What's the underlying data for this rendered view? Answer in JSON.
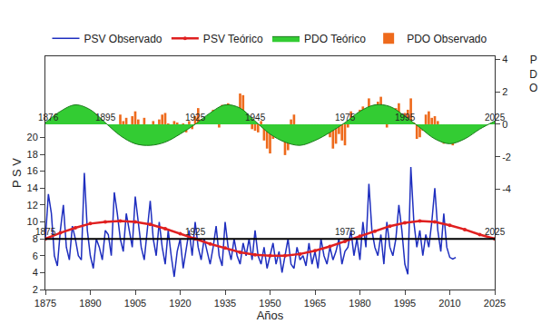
{
  "chart_data": {
    "type": "combo",
    "x_label": "Años",
    "y_label": "P S V",
    "y2_label": "P D O",
    "xlim": [
      1875,
      2025
    ],
    "xticks": [
      1875,
      1890,
      1905,
      1920,
      1935,
      1950,
      1965,
      1980,
      1995,
      2010,
      2025
    ],
    "ylim": [
      2,
      29.6
    ],
    "yticks": [
      2,
      4,
      6,
      8,
      10,
      12,
      14,
      16,
      18,
      20
    ],
    "y2lim": [
      -10.2,
      4.2
    ],
    "y2ticks": [
      4,
      2,
      0,
      -2,
      -4
    ],
    "grid": false,
    "legend": "top",
    "hline": 8,
    "series": [
      {
        "name": "PSV Observado",
        "type": "line",
        "color": "#1f2fbf",
        "axis": "y",
        "x": [
          1875,
          1876,
          1877,
          1878,
          1879,
          1880,
          1881,
          1882,
          1883,
          1884,
          1885,
          1886,
          1887,
          1888,
          1889,
          1890,
          1891,
          1892,
          1893,
          1894,
          1895,
          1896,
          1897,
          1898,
          1899,
          1900,
          1901,
          1902,
          1903,
          1904,
          1905,
          1906,
          1907,
          1908,
          1909,
          1910,
          1911,
          1912,
          1913,
          1914,
          1915,
          1916,
          1917,
          1918,
          1919,
          1920,
          1921,
          1922,
          1923,
          1924,
          1925,
          1926,
          1927,
          1928,
          1929,
          1930,
          1931,
          1932,
          1933,
          1934,
          1935,
          1936,
          1937,
          1938,
          1939,
          1940,
          1941,
          1942,
          1943,
          1944,
          1945,
          1946,
          1947,
          1948,
          1949,
          1950,
          1951,
          1952,
          1953,
          1954,
          1955,
          1956,
          1957,
          1958,
          1959,
          1960,
          1961,
          1962,
          1963,
          1964,
          1965,
          1966,
          1967,
          1968,
          1969,
          1970,
          1971,
          1972,
          1973,
          1974,
          1975,
          1976,
          1977,
          1978,
          1979,
          1980,
          1981,
          1982,
          1983,
          1984,
          1985,
          1986,
          1987,
          1988,
          1989,
          1990,
          1991,
          1992,
          1993,
          1994,
          1995,
          1996,
          1997,
          1998,
          1999,
          2000,
          2001,
          2002,
          2003,
          2004,
          2005,
          2006,
          2007,
          2008,
          2009,
          2010,
          2011,
          2012
        ],
        "values": [
          8,
          13.3,
          11,
          6,
          4.8,
          9,
          12,
          7,
          5.5,
          9.5,
          8,
          6,
          5.5,
          15.8,
          9,
          6,
          4.5,
          8,
          7,
          5.5,
          9,
          8.5,
          6,
          13.5,
          11,
          8,
          6.5,
          11,
          9,
          7,
          13,
          10,
          7,
          5.5,
          9,
          12.5,
          8,
          6,
          10,
          7,
          5,
          9,
          6,
          3.5,
          6.5,
          8,
          4.5,
          7,
          9,
          6,
          10,
          7,
          5.5,
          8,
          6.5,
          5,
          7,
          9.5,
          6,
          4.8,
          10,
          7,
          5.5,
          8,
          6,
          5,
          7.5,
          6,
          8,
          5.5,
          9,
          6,
          5,
          7,
          4.5,
          6,
          7.5,
          5,
          6.5,
          4,
          6,
          8,
          5,
          4.5,
          7,
          5.5,
          6,
          4.8,
          7.5,
          5,
          6.5,
          4.5,
          8,
          6,
          5,
          7,
          5.5,
          6.5,
          8,
          5,
          6.5,
          7,
          9,
          6,
          8,
          5.5,
          10,
          7,
          14.5,
          9,
          7,
          6,
          8.5,
          5,
          10,
          7,
          6,
          8,
          12,
          9,
          5,
          3.8,
          16.5,
          10,
          7,
          9,
          6,
          8.5,
          7,
          10,
          14,
          9,
          6.5,
          11,
          7,
          5.8,
          5.6,
          5.8
        ]
      },
      {
        "name": "PSV Teórico",
        "type": "line",
        "color": "#e02020",
        "marker": "circle",
        "axis": "y",
        "x": [
          1875,
          1880,
          1885,
          1890,
          1895,
          1900,
          1905,
          1910,
          1915,
          1920,
          1925,
          1930,
          1935,
          1940,
          1945,
          1950,
          1955,
          1960,
          1965,
          1970,
          1975,
          1980,
          1985,
          1990,
          1995,
          2000,
          2005,
          2010,
          2015,
          2020,
          2025
        ],
        "values": [
          8,
          8.7,
          9.3,
          9.8,
          10,
          10.1,
          10,
          9.7,
          9.2,
          8.6,
          8,
          7.4,
          6.9,
          6.4,
          6.1,
          6,
          6,
          6.2,
          6.6,
          7.1,
          7.7,
          8.3,
          8.9,
          9.5,
          9.9,
          10.1,
          10,
          9.6,
          9.1,
          8.5,
          8
        ]
      },
      {
        "name": "PDO Teórico",
        "type": "area",
        "color": "#33cc33",
        "axis": "y2",
        "x": [
          1875,
          1880,
          1885,
          1890,
          1895,
          1900,
          1905,
          1910,
          1915,
          1920,
          1925,
          1930,
          1935,
          1940,
          1945,
          1950,
          1955,
          1960,
          1965,
          1970,
          1975,
          1980,
          1985,
          1990,
          1995,
          2000,
          2005,
          2010,
          2015,
          2020,
          2025
        ],
        "values": [
          0.1,
          0.8,
          1.2,
          0.9,
          0.1,
          -0.7,
          -1.2,
          -1.3,
          -1.1,
          -0.6,
          0,
          0.7,
          1.2,
          1.0,
          0.2,
          -0.6,
          -1.1,
          -1.3,
          -1.0,
          -0.5,
          0.1,
          0.8,
          1.2,
          1.1,
          0.5,
          -0.2,
          -0.9,
          -1.2,
          -0.9,
          -0.3,
          0.2
        ]
      },
      {
        "name": "PDO Observado",
        "type": "bar",
        "color": "#ee6a1c",
        "axis": "y2",
        "x": [
          1900,
          1901,
          1902,
          1903,
          1904,
          1905,
          1906,
          1907,
          1908,
          1909,
          1910,
          1911,
          1912,
          1913,
          1914,
          1915,
          1916,
          1917,
          1918,
          1919,
          1920,
          1921,
          1922,
          1923,
          1924,
          1925,
          1926,
          1927,
          1928,
          1929,
          1930,
          1931,
          1932,
          1933,
          1934,
          1935,
          1936,
          1937,
          1938,
          1939,
          1940,
          1941,
          1942,
          1943,
          1944,
          1945,
          1946,
          1947,
          1948,
          1949,
          1950,
          1951,
          1952,
          1953,
          1954,
          1955,
          1956,
          1957,
          1958,
          1959,
          1960,
          1961,
          1962,
          1963,
          1964,
          1965,
          1966,
          1967,
          1968,
          1969,
          1970,
          1971,
          1972,
          1973,
          1974,
          1975,
          1976,
          1977,
          1978,
          1979,
          1980,
          1981,
          1982,
          1983,
          1984,
          1985,
          1986,
          1987,
          1988,
          1989,
          1990,
          1991,
          1992,
          1993,
          1994,
          1995,
          1996,
          1997,
          1998,
          1999,
          2000,
          2001,
          2002,
          2003,
          2004,
          2005,
          2006,
          2007,
          2008,
          2009,
          2010,
          2011,
          2012
        ],
        "values": [
          0.6,
          0.2,
          0.4,
          -0.3,
          0.5,
          0.8,
          0.3,
          -0.2,
          0.4,
          -0.4,
          -0.3,
          0.2,
          -0.2,
          0.3,
          0.6,
          0.7,
          -0.1,
          -0.4,
          0.2,
          0.1,
          -0.4,
          -0.1,
          -0.5,
          0.2,
          -0.3,
          0.5,
          1.0,
          0.3,
          0.2,
          0.1,
          0.4,
          0.9,
          0.3,
          -0.2,
          1.2,
          0.8,
          1.3,
          0.7,
          0.4,
          0.9,
          1.9,
          1.8,
          0.6,
          0.3,
          -0.3,
          -0.4,
          -0.5,
          0.2,
          -1.0,
          -1.5,
          -1.8,
          -0.9,
          -0.7,
          -0.2,
          -0.6,
          -1.9,
          -1.6,
          0.3,
          0.6,
          -0.2,
          -0.4,
          -0.9,
          -1.1,
          -0.4,
          -0.8,
          -0.5,
          -0.6,
          -0.3,
          -0.7,
          -0.4,
          -0.8,
          -1.5,
          -1.2,
          -0.6,
          -1.0,
          -1.3,
          -0.2,
          0.8,
          0.3,
          0.5,
          0.9,
          1.1,
          0.5,
          1.6,
          1.0,
          0.8,
          1.4,
          1.7,
          0.5,
          -0.2,
          0.1,
          0.4,
          1.0,
          1.3,
          0.4,
          0.7,
          0.9,
          1.6,
          0.1,
          -0.9,
          -0.8,
          -0.4,
          0.6,
          0.8,
          0.4,
          0.5,
          0.2,
          -0.5,
          -1.2,
          -0.6,
          -0.3,
          -1.3,
          -1.1
        ]
      }
    ],
    "annotations": [
      {
        "text": "1876",
        "x": 1876,
        "y": 0,
        "axis": "y2"
      },
      {
        "text": "1895",
        "x": 1895,
        "y": 0,
        "axis": "y2"
      },
      {
        "text": "1925",
        "x": 1925,
        "y": 0,
        "axis": "y2"
      },
      {
        "text": "1945",
        "x": 1945,
        "y": 0,
        "axis": "y2"
      },
      {
        "text": "1975",
        "x": 1975,
        "y": 0,
        "axis": "y2"
      },
      {
        "text": "1995",
        "x": 1995,
        "y": 0,
        "axis": "y2"
      },
      {
        "text": "2025",
        "x": 2025,
        "y": 0,
        "axis": "y2"
      },
      {
        "text": "1875",
        "x": 1875,
        "y": 8,
        "axis": "y"
      },
      {
        "text": "1925",
        "x": 1925,
        "y": 8,
        "axis": "y"
      },
      {
        "text": "1975",
        "x": 1975,
        "y": 8,
        "axis": "y"
      },
      {
        "text": "2025",
        "x": 2025,
        "y": 8,
        "axis": "y"
      }
    ]
  }
}
